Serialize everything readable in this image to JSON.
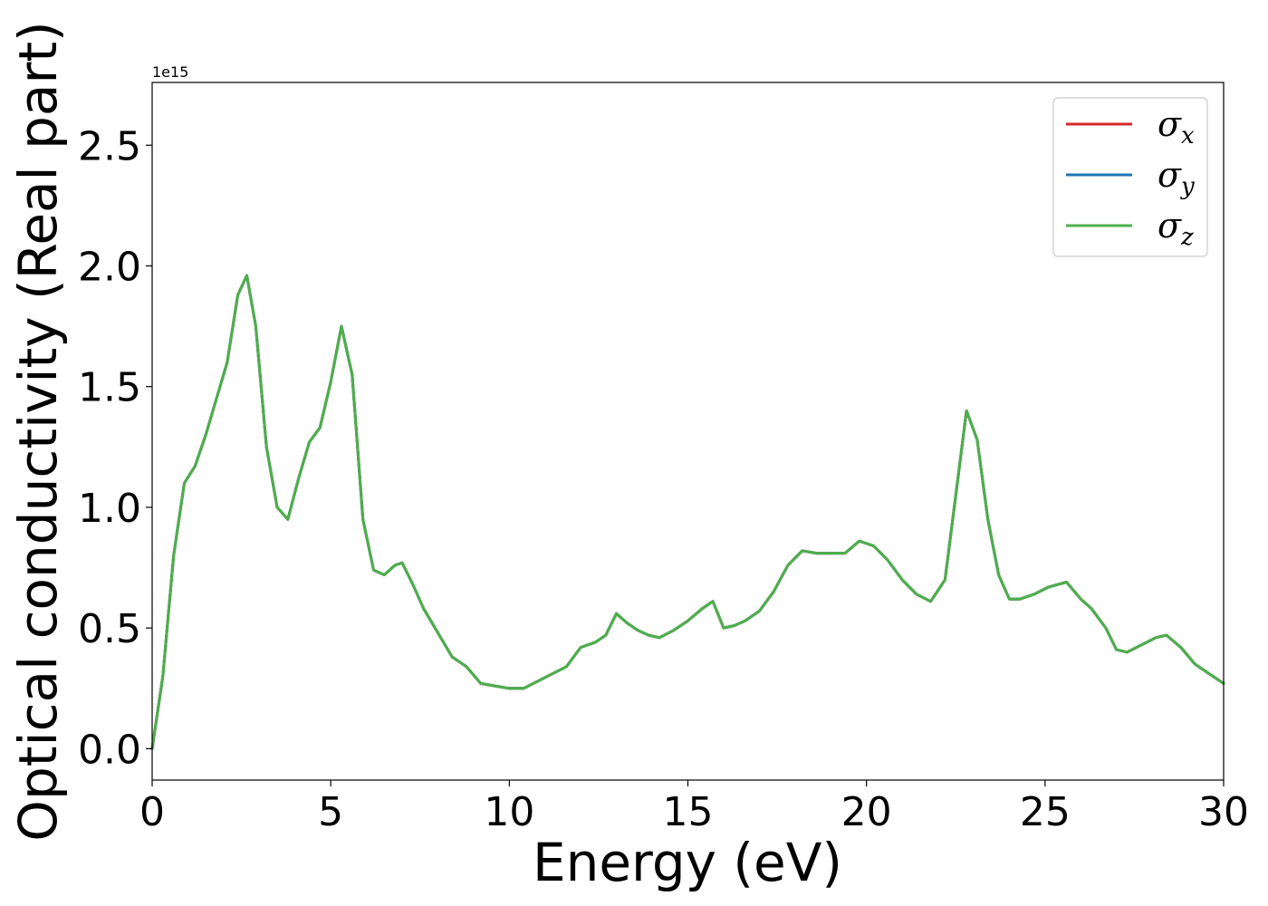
{
  "chart_data": {
    "type": "line",
    "title": "",
    "xlabel": "Energy (eV)",
    "ylabel": "Optical conductivity (Real part)",
    "y_offset_label": "1e15",
    "xlim": [
      0,
      30
    ],
    "ylim": [
      -0.13,
      2.76
    ],
    "x_ticks": [
      0,
      5,
      10,
      15,
      20,
      25,
      30
    ],
    "x_tick_labels": [
      "0",
      "5",
      "10",
      "15",
      "20",
      "25",
      "30"
    ],
    "y_ticks": [
      0.0,
      0.5,
      1.0,
      1.5,
      2.0,
      2.5
    ],
    "y_tick_labels": [
      "0.0",
      "0.5",
      "1.0",
      "1.5",
      "2.0",
      "2.5"
    ],
    "grid": false,
    "legend_position": "top-right",
    "legend": [
      {
        "symbol": "σ",
        "subscript": "x",
        "color": "#d62728"
      },
      {
        "symbol": "σ",
        "subscript": "y",
        "color": "#1f77b4"
      },
      {
        "symbol": "σ",
        "subscript": "z",
        "color": "#4daf4a"
      }
    ],
    "x": [
      0,
      0.3,
      0.6,
      0.9,
      1.2,
      1.5,
      1.8,
      2.1,
      2.4,
      2.65,
      2.9,
      3.2,
      3.5,
      3.8,
      4.1,
      4.4,
      4.7,
      5.0,
      5.3,
      5.6,
      5.9,
      6.2,
      6.5,
      6.8,
      7.0,
      7.3,
      7.6,
      8.0,
      8.4,
      8.8,
      9.2,
      9.6,
      10.0,
      10.4,
      10.8,
      11.2,
      11.6,
      12.0,
      12.4,
      12.7,
      13.0,
      13.3,
      13.6,
      13.9,
      14.2,
      14.6,
      15.0,
      15.4,
      15.7,
      16.0,
      16.3,
      16.6,
      17.0,
      17.4,
      17.8,
      18.2,
      18.6,
      19.0,
      19.4,
      19.8,
      20.2,
      20.6,
      21.0,
      21.4,
      21.8,
      22.2,
      22.5,
      22.8,
      23.1,
      23.4,
      23.7,
      24.0,
      24.3,
      24.7,
      25.1,
      25.6,
      26.0,
      26.3,
      26.7,
      27.0,
      27.3,
      27.7,
      28.1,
      28.4,
      28.8,
      29.2,
      29.6,
      30.0
    ],
    "series": [
      {
        "name": "σx",
        "color": "#d62728",
        "values": [
          0.0,
          0.3,
          0.8,
          1.1,
          1.17,
          1.3,
          1.45,
          1.6,
          1.88,
          1.96,
          1.75,
          1.25,
          1.0,
          0.95,
          1.12,
          1.27,
          1.33,
          1.52,
          1.75,
          1.55,
          0.95,
          0.74,
          0.72,
          0.76,
          0.77,
          0.68,
          0.58,
          0.48,
          0.38,
          0.34,
          0.27,
          0.26,
          0.25,
          0.25,
          0.28,
          0.31,
          0.34,
          0.42,
          0.44,
          0.47,
          0.56,
          0.52,
          0.49,
          0.47,
          0.46,
          0.49,
          0.53,
          0.58,
          0.61,
          0.5,
          0.51,
          0.53,
          0.57,
          0.65,
          0.76,
          0.82,
          0.81,
          0.81,
          0.81,
          0.86,
          0.84,
          0.78,
          0.7,
          0.64,
          0.61,
          0.7,
          1.05,
          1.4,
          1.28,
          0.95,
          0.72,
          0.62,
          0.62,
          0.64,
          0.67,
          0.69,
          0.62,
          0.58,
          0.5,
          0.41,
          0.4,
          0.43,
          0.46,
          0.47,
          0.42,
          0.35,
          0.31,
          0.27
        ]
      },
      {
        "name": "σy",
        "color": "#1f77b4",
        "values": [
          0.0,
          0.3,
          0.8,
          1.1,
          1.17,
          1.3,
          1.45,
          1.6,
          1.88,
          1.96,
          1.75,
          1.25,
          1.0,
          0.95,
          1.12,
          1.27,
          1.33,
          1.52,
          1.75,
          1.55,
          0.95,
          0.74,
          0.72,
          0.76,
          0.77,
          0.68,
          0.58,
          0.48,
          0.38,
          0.34,
          0.27,
          0.26,
          0.25,
          0.25,
          0.28,
          0.31,
          0.34,
          0.42,
          0.44,
          0.47,
          0.56,
          0.52,
          0.49,
          0.47,
          0.46,
          0.49,
          0.53,
          0.58,
          0.61,
          0.5,
          0.51,
          0.53,
          0.57,
          0.65,
          0.76,
          0.82,
          0.81,
          0.81,
          0.81,
          0.86,
          0.84,
          0.78,
          0.7,
          0.64,
          0.61,
          0.7,
          1.05,
          1.4,
          1.28,
          0.95,
          0.72,
          0.62,
          0.62,
          0.64,
          0.67,
          0.69,
          0.62,
          0.58,
          0.5,
          0.41,
          0.4,
          0.43,
          0.46,
          0.47,
          0.42,
          0.35,
          0.31,
          0.27
        ]
      },
      {
        "name": "σz",
        "color": "#4daf4a",
        "values": [
          0.0,
          0.3,
          0.8,
          1.1,
          1.17,
          1.3,
          1.45,
          1.6,
          1.88,
          1.96,
          1.75,
          1.25,
          1.0,
          0.95,
          1.12,
          1.27,
          1.33,
          1.52,
          1.75,
          1.55,
          0.95,
          0.74,
          0.72,
          0.76,
          0.77,
          0.68,
          0.58,
          0.48,
          0.38,
          0.34,
          0.27,
          0.26,
          0.25,
          0.25,
          0.28,
          0.31,
          0.34,
          0.42,
          0.44,
          0.47,
          0.56,
          0.52,
          0.49,
          0.47,
          0.46,
          0.49,
          0.53,
          0.58,
          0.61,
          0.5,
          0.51,
          0.53,
          0.57,
          0.65,
          0.76,
          0.82,
          0.81,
          0.81,
          0.81,
          0.86,
          0.84,
          0.78,
          0.7,
          0.64,
          0.61,
          0.7,
          1.05,
          1.4,
          1.28,
          0.95,
          0.72,
          0.62,
          0.62,
          0.64,
          0.67,
          0.69,
          0.62,
          0.58,
          0.5,
          0.41,
          0.4,
          0.43,
          0.46,
          0.47,
          0.42,
          0.35,
          0.31,
          0.27
        ]
      }
    ]
  }
}
